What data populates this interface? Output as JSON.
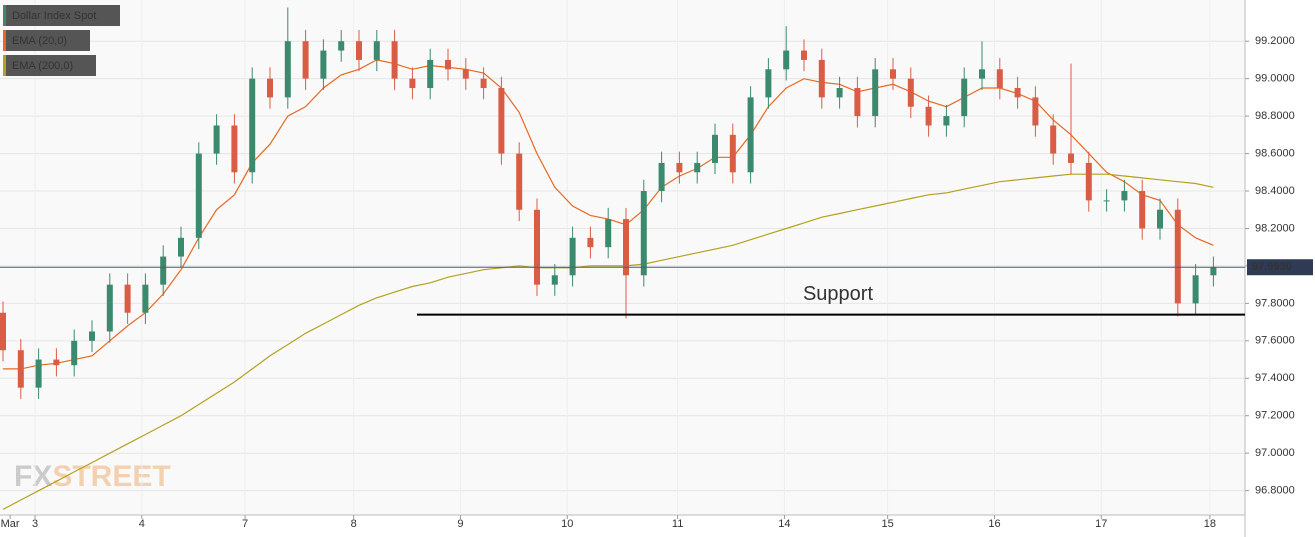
{
  "chart_data": {
    "type": "candlestick",
    "name": "Dollar Index Spot",
    "up_color": "#3c8a6e",
    "down_color": "#d95c45",
    "open": [
      97.75,
      97.55,
      97.35,
      97.5,
      97.47,
      97.6,
      97.65,
      97.9,
      97.75,
      97.9,
      98.05,
      98.15,
      98.6,
      98.75,
      98.5,
      99.0,
      98.9,
      99.2,
      99.0,
      99.15,
      99.2,
      99.1,
      99.2,
      99.0,
      98.95,
      99.1,
      99.05,
      99.0,
      98.95,
      98.6,
      98.3,
      97.9,
      97.95,
      98.15,
      98.1,
      98.25,
      97.95,
      98.4,
      98.55,
      98.5,
      98.55,
      98.7,
      98.5,
      98.9,
      99.05,
      99.15,
      99.1,
      98.9,
      98.95,
      98.8,
      99.05,
      99.0,
      98.85,
      98.75,
      98.8,
      99.0,
      99.05,
      98.95,
      98.9,
      98.75,
      98.6,
      98.55,
      98.35,
      98.35,
      98.4,
      98.2,
      98.3,
      97.8,
      97.95
    ],
    "high": [
      97.81,
      97.61,
      97.56,
      97.56,
      97.66,
      97.71,
      97.96,
      97.96,
      97.96,
      98.11,
      98.21,
      98.66,
      98.81,
      98.81,
      99.06,
      99.06,
      99.38,
      99.26,
      99.21,
      99.26,
      99.26,
      99.26,
      99.26,
      99.06,
      99.16,
      99.16,
      99.11,
      99.06,
      99.01,
      98.66,
      98.36,
      98.01,
      98.21,
      98.21,
      98.31,
      98.31,
      98.46,
      98.61,
      98.61,
      98.61,
      98.76,
      98.76,
      98.96,
      99.11,
      99.28,
      99.21,
      99.16,
      99.01,
      99.01,
      99.11,
      99.11,
      99.06,
      98.91,
      98.86,
      99.06,
      99.2,
      99.11,
      99.01,
      98.96,
      98.81,
      99.08,
      98.61,
      98.41,
      98.46,
      98.46,
      98.36,
      98.36,
      98.01,
      98.05
    ],
    "low": [
      97.49,
      97.29,
      97.29,
      97.41,
      97.41,
      97.54,
      97.59,
      97.69,
      97.69,
      97.84,
      97.99,
      98.09,
      98.54,
      98.44,
      98.44,
      98.84,
      98.84,
      98.94,
      98.94,
      99.09,
      99.04,
      99.04,
      98.94,
      98.89,
      98.89,
      98.99,
      98.94,
      98.89,
      98.54,
      98.24,
      97.84,
      97.84,
      97.89,
      98.04,
      98.04,
      97.72,
      97.89,
      98.34,
      98.44,
      98.44,
      98.49,
      98.44,
      98.44,
      98.84,
      98.99,
      99.04,
      98.84,
      98.84,
      98.74,
      98.74,
      98.94,
      98.79,
      98.69,
      98.69,
      98.74,
      98.94,
      98.89,
      98.84,
      98.69,
      98.54,
      98.49,
      98.29,
      98.29,
      98.29,
      98.14,
      98.14,
      97.73,
      97.74,
      97.89
    ],
    "close": [
      97.55,
      97.35,
      97.5,
      97.47,
      97.6,
      97.65,
      97.9,
      97.75,
      97.9,
      98.05,
      98.15,
      98.6,
      98.75,
      98.5,
      99.0,
      98.9,
      99.2,
      99.0,
      99.15,
      99.2,
      99.1,
      99.2,
      99.0,
      98.95,
      99.1,
      99.05,
      99.0,
      98.95,
      98.6,
      98.3,
      97.9,
      97.95,
      98.15,
      98.1,
      98.25,
      97.95,
      98.4,
      98.55,
      98.5,
      98.55,
      98.7,
      98.5,
      98.9,
      99.05,
      99.15,
      99.1,
      98.9,
      98.95,
      98.8,
      99.05,
      99.0,
      98.85,
      98.75,
      98.8,
      99.0,
      99.05,
      98.95,
      98.9,
      98.75,
      98.6,
      98.55,
      98.35,
      98.35,
      98.4,
      98.2,
      98.3,
      97.8,
      97.95,
      97.993
    ],
    "overlays": [
      {
        "name": "EMA (20,0)",
        "color": "#e8681e",
        "values": [
          97.45,
          97.45,
          97.47,
          97.48,
          97.5,
          97.52,
          97.6,
          97.68,
          97.75,
          97.85,
          97.98,
          98.15,
          98.3,
          98.38,
          98.55,
          98.65,
          98.8,
          98.85,
          98.95,
          99.02,
          99.05,
          99.1,
          99.08,
          99.05,
          99.07,
          99.06,
          99.05,
          99.03,
          98.95,
          98.82,
          98.6,
          98.42,
          98.32,
          98.27,
          98.25,
          98.22,
          98.3,
          98.42,
          98.48,
          98.52,
          98.58,
          98.58,
          98.7,
          98.85,
          98.95,
          99.0,
          98.98,
          98.97,
          98.93,
          98.95,
          98.97,
          98.93,
          98.88,
          98.85,
          98.9,
          98.95,
          98.95,
          98.92,
          98.88,
          98.78,
          98.7,
          98.6,
          98.5,
          98.45,
          98.38,
          98.35,
          98.22,
          98.15,
          98.11
        ]
      },
      {
        "name": "EMA (200,0)",
        "color": "#b3a21e",
        "values": [
          96.7,
          96.75,
          96.8,
          96.85,
          96.9,
          96.95,
          97.0,
          97.05,
          97.1,
          97.15,
          97.2,
          97.26,
          97.32,
          97.38,
          97.45,
          97.52,
          97.58,
          97.64,
          97.69,
          97.74,
          97.79,
          97.83,
          97.86,
          97.89,
          97.91,
          97.94,
          97.96,
          97.98,
          97.99,
          98.0,
          97.99,
          97.99,
          97.99,
          98.0,
          98.0,
          98.0,
          98.01,
          98.03,
          98.05,
          98.07,
          98.09,
          98.11,
          98.14,
          98.17,
          98.2,
          98.23,
          98.26,
          98.28,
          98.3,
          98.32,
          98.34,
          98.36,
          98.38,
          98.39,
          98.41,
          98.43,
          98.45,
          98.46,
          98.47,
          98.48,
          98.49,
          98.49,
          98.49,
          98.48,
          98.47,
          98.46,
          98.45,
          98.44,
          98.42
        ]
      }
    ],
    "xticks": [
      {
        "value": 0.4,
        "label": "Mar"
      },
      {
        "value": 1.8,
        "label": "3"
      },
      {
        "value": 7.8,
        "label": "4"
      },
      {
        "value": 13.6,
        "label": "7"
      },
      {
        "value": 19.7,
        "label": "8"
      },
      {
        "value": 25.7,
        "label": "9"
      },
      {
        "value": 31.7,
        "label": "10"
      },
      {
        "value": 37.9,
        "label": "11"
      },
      {
        "value": 43.9,
        "label": "14"
      },
      {
        "value": 49.7,
        "label": "15"
      },
      {
        "value": 55.7,
        "label": "16"
      },
      {
        "value": 61.7,
        "label": "17"
      },
      {
        "value": 67.8,
        "label": "18"
      }
    ],
    "ylim": [
      96.67,
      99.42
    ],
    "yticks": [
      {
        "value": 96.8,
        "label": "96.8000"
      },
      {
        "value": 97.0,
        "label": "97.0000"
      },
      {
        "value": 97.2,
        "label": "97.2000"
      },
      {
        "value": 97.4,
        "label": "97.4000"
      },
      {
        "value": 97.6,
        "label": "97.6000"
      },
      {
        "value": 97.8,
        "label": "97.8000"
      },
      {
        "value": 98.0,
        "label": "98.0000"
      },
      {
        "value": 98.2,
        "label": "98.2000"
      },
      {
        "value": 98.4,
        "label": "98.4000"
      },
      {
        "value": 98.6,
        "label": "98.6000"
      },
      {
        "value": 98.8,
        "label": "98.8000"
      },
      {
        "value": 99.0,
        "label": "99.0000"
      },
      {
        "value": 99.2,
        "label": "99.2000"
      }
    ],
    "grid": true,
    "last_price": {
      "value": 97.993,
      "label": "97.9930"
    },
    "support": {
      "value": 97.74,
      "label": "Support"
    },
    "watermark": [
      "FX",
      "STREET"
    ]
  }
}
